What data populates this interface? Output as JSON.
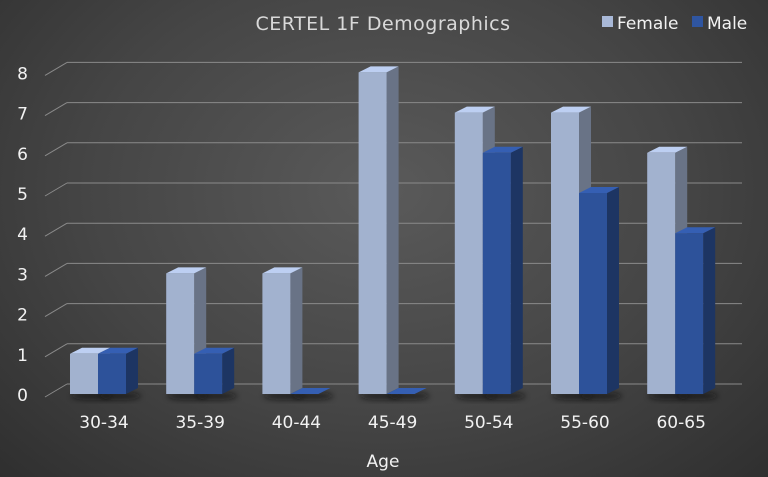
{
  "chart_data": {
    "type": "bar",
    "title": "CERTEL 1F Demographics",
    "xlabel": "Age",
    "ylabel": "",
    "categories": [
      "30-34",
      "35-39",
      "40-44",
      "45-49",
      "50-54",
      "55-60",
      "60-65"
    ],
    "series": [
      {
        "name": "Female",
        "values": [
          1,
          3,
          3,
          8,
          7,
          7,
          6
        ],
        "color": "#a9b9d8"
      },
      {
        "name": "Male",
        "values": [
          1,
          1,
          0,
          0,
          6,
          5,
          4
        ],
        "color": "#2f55a0"
      }
    ],
    "ylim": [
      0,
      8
    ],
    "yticks": [
      "0",
      "1",
      "2",
      "3",
      "4",
      "5",
      "6",
      "7",
      "8"
    ],
    "grid": true,
    "legend_position": "top-right",
    "style": "3d-clustered-column"
  }
}
